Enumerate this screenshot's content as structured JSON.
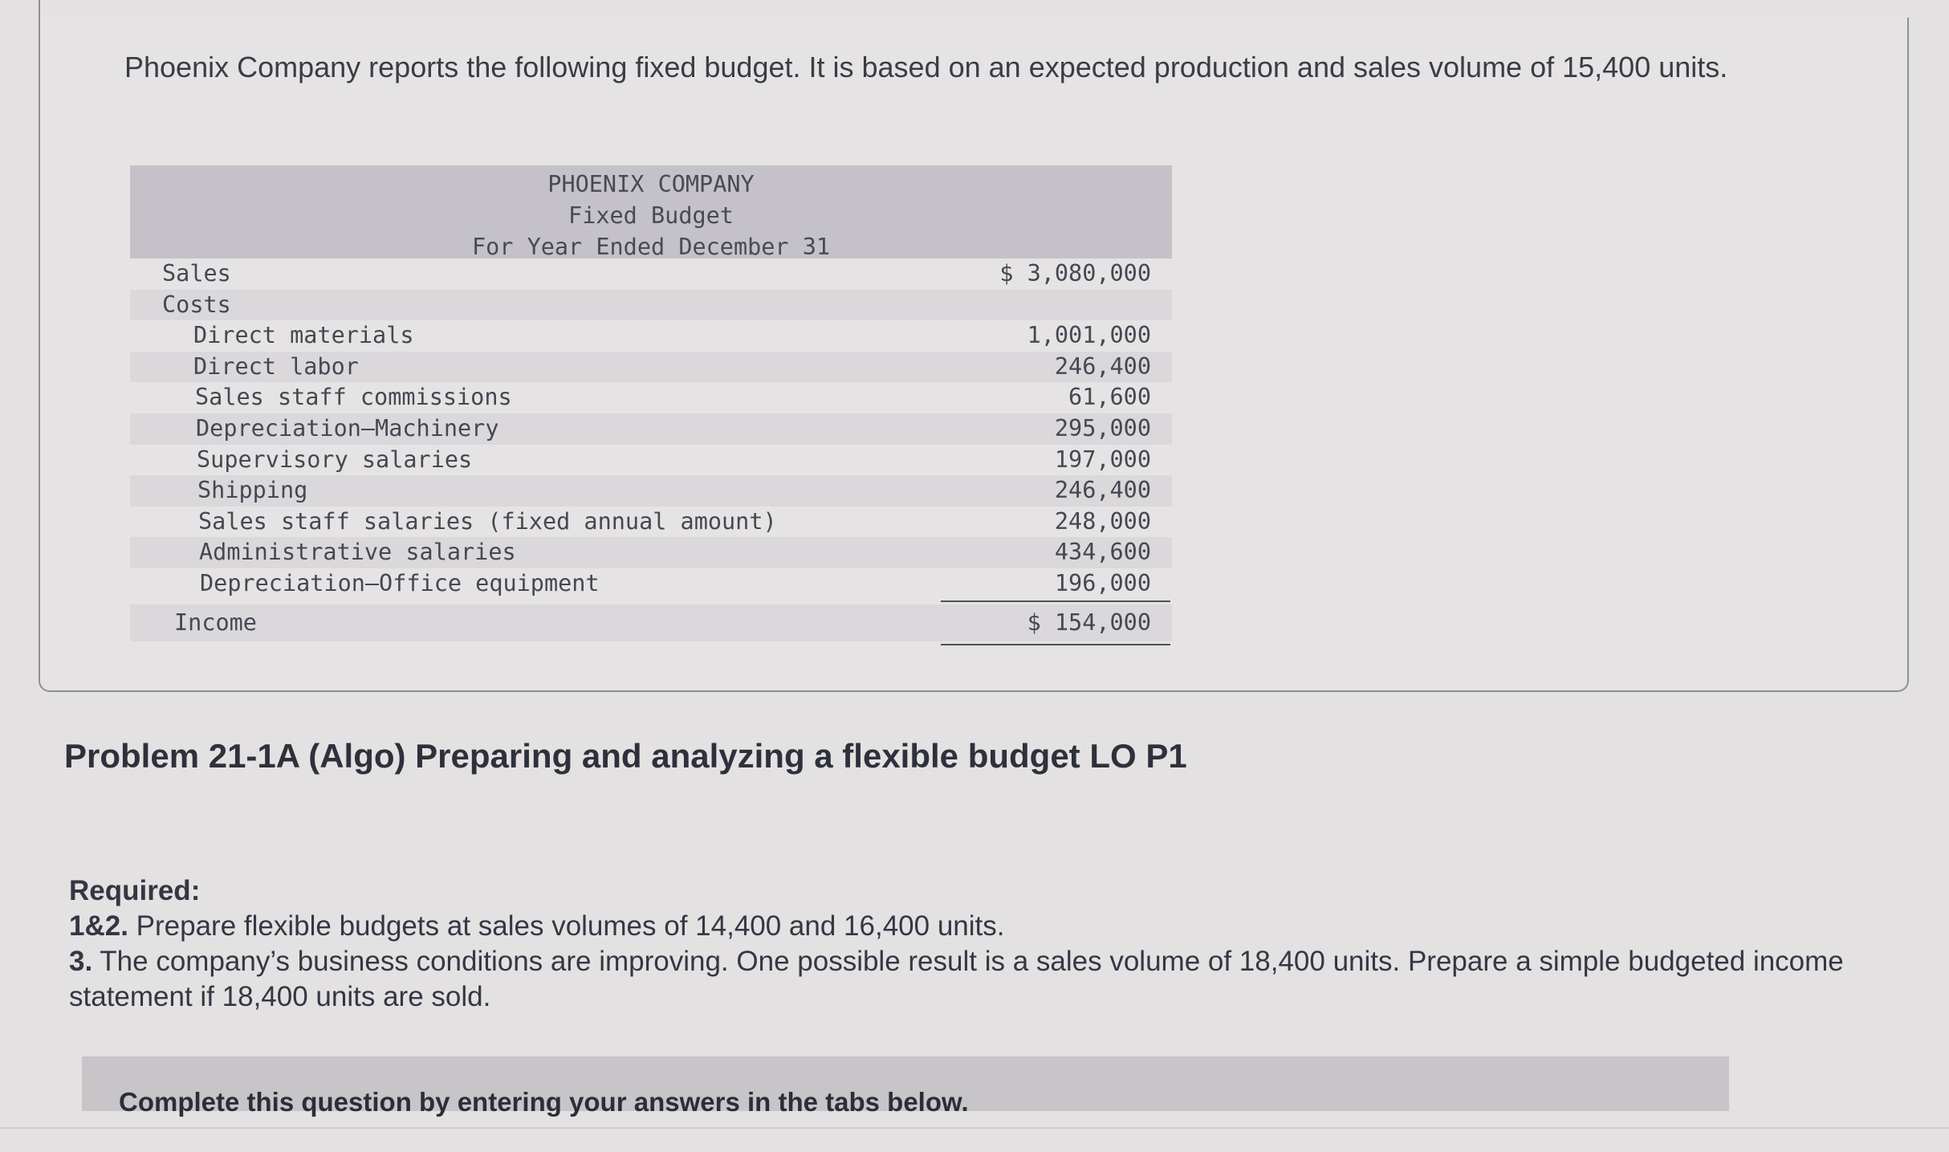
{
  "intro": "Phoenix Company reports the following fixed budget. It is based on an expected production and sales volume of 15,400 units.",
  "budget": {
    "company": "PHOENIX COMPANY",
    "title": "Fixed Budget",
    "period": "For Year Ended December 31",
    "sales_label": "Sales",
    "sales_value": "$ 3,080,000",
    "costs_label": "Costs",
    "costs": [
      {
        "label": "Direct materials",
        "value": "1,001,000"
      },
      {
        "label": "Direct labor",
        "value": "246,400"
      },
      {
        "label": "Sales staff commissions",
        "value": "61,600"
      },
      {
        "label": "Depreciation—Machinery",
        "value": "295,000"
      },
      {
        "label": "Supervisory salaries",
        "value": "197,000"
      },
      {
        "label": "Shipping",
        "value": "246,400"
      },
      {
        "label": "Sales staff salaries (fixed annual amount)",
        "value": "248,000"
      },
      {
        "label": "Administrative salaries",
        "value": "434,600"
      },
      {
        "label": "Depreciation—Office equipment",
        "value": "196,000"
      }
    ],
    "income_label": "Income",
    "income_value": "$ 154,000"
  },
  "problem_title": "Problem 21-1A (Algo) Preparing and analyzing a flexible budget LO P1",
  "required": {
    "heading": "Required:",
    "item1_num": "1&2.",
    "item1_text": " Prepare flexible budgets at sales volumes of 14,400 and 16,400 units.",
    "item2_num": "3.",
    "item2_text": " The company’s business conditions are improving. One possible result is a sales volume of 18,400 units. Prepare a simple budgeted income statement if 18,400 units are sold."
  },
  "tabs_instruction": "Complete this question by entering your answers in the tabs below."
}
